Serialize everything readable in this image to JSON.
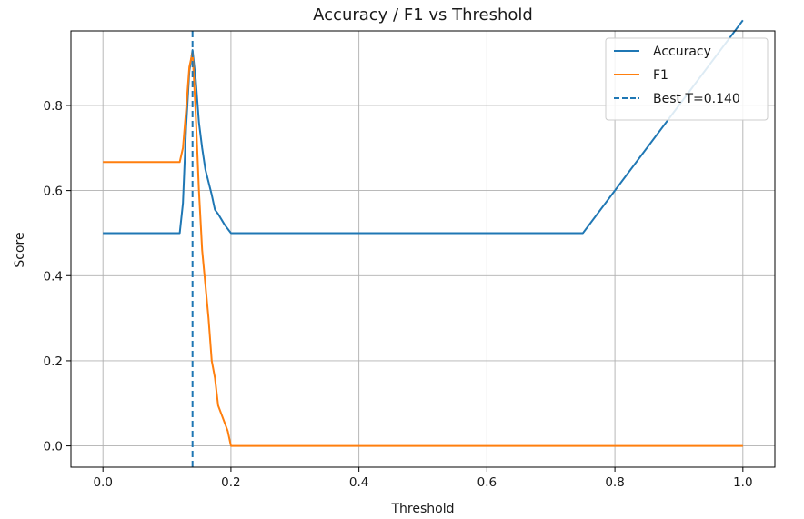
{
  "chart_data": {
    "type": "line",
    "title": "Accuracy / F1 vs Threshold",
    "xlabel": "Threshold",
    "ylabel": "Score",
    "xlim": [
      -0.05,
      1.05
    ],
    "ylim": [
      -0.05,
      0.975
    ],
    "grid": true,
    "legend_position": "top-right",
    "xticks": [
      0.0,
      0.2,
      0.4,
      0.6,
      0.8,
      1.0
    ],
    "xtick_labels": [
      "0.0",
      "0.2",
      "0.4",
      "0.6",
      "0.8",
      "1.0"
    ],
    "yticks": [
      0.0,
      0.2,
      0.4,
      0.6,
      0.8
    ],
    "ytick_labels": [
      "0.0",
      "0.2",
      "0.4",
      "0.6",
      "0.8"
    ],
    "series": [
      {
        "name": "Accuracy",
        "color": "#1f77b4",
        "style": "solid",
        "x": [
          0.0,
          0.12,
          0.125,
          0.13,
          0.135,
          0.14,
          0.145,
          0.15,
          0.155,
          0.16,
          0.17,
          0.175,
          0.18,
          0.19,
          0.2,
          0.25,
          0.5,
          0.75,
          1.0
        ],
        "y": [
          0.5,
          0.5,
          0.57,
          0.75,
          0.88,
          0.93,
          0.86,
          0.76,
          0.7,
          0.65,
          0.59,
          0.555,
          0.545,
          0.52,
          0.5,
          0.5,
          0.5,
          0.5,
          1.0
        ]
      },
      {
        "name": "F1",
        "color": "#ff7f0e",
        "style": "solid",
        "x": [
          0.0,
          0.12,
          0.125,
          0.13,
          0.135,
          0.14,
          0.145,
          0.15,
          0.155,
          0.16,
          0.165,
          0.17,
          0.175,
          0.18,
          0.185,
          0.19,
          0.195,
          0.2,
          0.25,
          0.5,
          0.75,
          1.0
        ],
        "y": [
          0.667,
          0.667,
          0.7,
          0.79,
          0.89,
          0.925,
          0.78,
          0.6,
          0.46,
          0.38,
          0.3,
          0.2,
          0.16,
          0.095,
          0.075,
          0.055,
          0.035,
          0.0,
          0.0,
          0.0,
          0.0,
          0.0
        ]
      }
    ],
    "vlines": [
      {
        "name": "Best T=0.140",
        "x": 0.14,
        "color": "#1f77b4",
        "style": "dashed"
      }
    ]
  }
}
